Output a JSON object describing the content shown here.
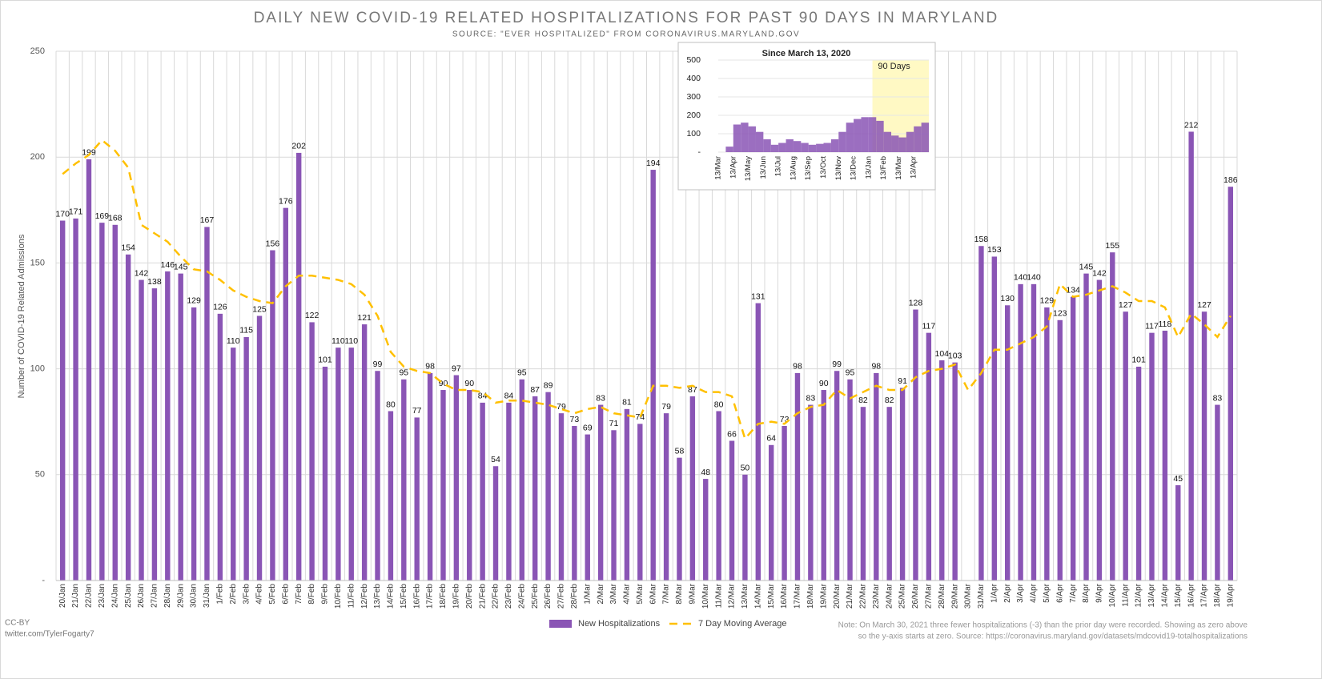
{
  "chart_data": [
    {
      "type": "bar",
      "title": "DAILY NEW COVID-19 RELATED HOSPITALIZATIONS FOR PAST 90 DAYS IN MARYLAND",
      "subtitle": "SOURCE: \"EVER HOSPITALIZED\" FROM CORONAVIRUS.MARYLAND.GOV",
      "y_label": "Number of COVID-19 Related Admissions",
      "categories": [
        "20/Jan",
        "21/Jan",
        "22/Jan",
        "23/Jan",
        "24/Jan",
        "25/Jan",
        "26/Jan",
        "27/Jan",
        "28/Jan",
        "29/Jan",
        "30/Jan",
        "31/Jan",
        "1/Feb",
        "2/Feb",
        "3/Feb",
        "4/Feb",
        "5/Feb",
        "6/Feb",
        "7/Feb",
        "8/Feb",
        "9/Feb",
        "10/Feb",
        "11/Feb",
        "12/Feb",
        "13/Feb",
        "14/Feb",
        "15/Feb",
        "16/Feb",
        "17/Feb",
        "18/Feb",
        "19/Feb",
        "20/Feb",
        "21/Feb",
        "22/Feb",
        "23/Feb",
        "24/Feb",
        "25/Feb",
        "26/Feb",
        "27/Feb",
        "28/Feb",
        "1/Mar",
        "2/Mar",
        "3/Mar",
        "4/Mar",
        "5/Mar",
        "6/Mar",
        "7/Mar",
        "8/Mar",
        "9/Mar",
        "10/Mar",
        "11/Mar",
        "12/Mar",
        "13/Mar",
        "14/Mar",
        "15/Mar",
        "16/Mar",
        "17/Mar",
        "18/Mar",
        "19/Mar",
        "20/Mar",
        "21/Mar",
        "22/Mar",
        "23/Mar",
        "24/Mar",
        "25/Mar",
        "26/Mar",
        "27/Mar",
        "28/Mar",
        "29/Mar",
        "30/Mar",
        "31/Mar",
        "1/Apr",
        "2/Apr",
        "3/Apr",
        "4/Apr",
        "5/Apr",
        "6/Apr",
        "7/Apr",
        "8/Apr",
        "9/Apr",
        "10/Apr",
        "11/Apr",
        "12/Apr",
        "13/Apr",
        "14/Apr",
        "15/Apr",
        "16/Apr",
        "17/Apr",
        "18/Apr",
        "19/Apr"
      ],
      "series": [
        {
          "name": "New Hospitalizations",
          "type": "bar",
          "color": "#8a55b5",
          "values": [
            170,
            171,
            199,
            169,
            168,
            154,
            142,
            138,
            146,
            145,
            129,
            167,
            126,
            110,
            115,
            125,
            156,
            176,
            202,
            122,
            101,
            110,
            110,
            121,
            99,
            80,
            95,
            77,
            98,
            90,
            97,
            90,
            84,
            54,
            84,
            95,
            87,
            89,
            79,
            73,
            69,
            83,
            71,
            81,
            74,
            194,
            79,
            58,
            87,
            48,
            80,
            66,
            50,
            131,
            64,
            73,
            98,
            83,
            90,
            99,
            95,
            82,
            98,
            82,
            91,
            128,
            117,
            104,
            103,
            0,
            158,
            153,
            130,
            140,
            140,
            129,
            123,
            134,
            145,
            142,
            155,
            127,
            101,
            117,
            118,
            45,
            212,
            127,
            83,
            186
          ]
        },
        {
          "name": "7 Day Moving Average",
          "type": "line",
          "color": "#ffc000",
          "values": [
            192,
            197,
            201,
            208,
            203,
            195,
            168,
            164,
            160,
            153,
            147,
            146,
            142,
            137,
            134,
            132,
            131,
            139,
            144,
            144,
            143,
            142,
            140,
            135,
            125,
            108,
            101,
            99,
            98,
            93,
            90,
            90,
            89,
            84,
            85,
            85,
            84,
            83,
            81,
            79,
            81,
            82,
            79,
            78,
            77,
            92,
            92,
            91,
            92,
            89,
            89,
            87,
            67,
            74,
            75,
            74,
            79,
            82,
            83,
            90,
            86,
            89,
            92,
            90,
            90,
            96,
            99,
            100,
            102,
            90,
            98,
            109,
            109,
            112,
            115,
            120,
            140,
            134,
            135,
            137,
            139,
            136,
            132,
            132,
            129,
            115,
            126,
            121,
            115,
            125
          ]
        }
      ],
      "ylim": [
        0,
        250
      ],
      "yticks": [
        {
          "value": 0,
          "label": "-"
        },
        50,
        100,
        150,
        200,
        250
      ],
      "grid": true,
      "legend": "bottom"
    },
    {
      "type": "bar",
      "title": "Since March 13, 2020",
      "annotation": "90 Days",
      "categories": [
        "13/Mar",
        null,
        "13/Apr",
        null,
        "13/May",
        null,
        "13/Jun",
        null,
        "13/Jul",
        null,
        "13/Aug",
        null,
        "13/Sep",
        null,
        "13/Oct",
        null,
        "13/Nov",
        null,
        "13/Dec",
        null,
        "13/Jan",
        null,
        "13/Feb",
        null,
        "13/Mar",
        null,
        "13/Apr",
        null
      ],
      "values": [
        0,
        30,
        150,
        160,
        140,
        110,
        70,
        40,
        50,
        70,
        60,
        50,
        40,
        45,
        50,
        70,
        110,
        160,
        180,
        190,
        190,
        170,
        110,
        90,
        80,
        110,
        140,
        160
      ],
      "color": "#8a55b5",
      "ylim": [
        0,
        500
      ],
      "yticks": [
        {
          "value": 0,
          "label": "-"
        },
        100,
        200,
        300,
        400,
        500
      ]
    }
  ],
  "credits": [
    "CC-BY",
    "twitter.com/TylerFogarty7"
  ],
  "note": [
    "Note: On March 30, 2021 three fewer hospitalizations (-3) than the prior day were recorded. Showing as zero above",
    "so the y-axis starts at zero. Source: https://coronavirus.maryland.gov/datasets/mdcovid19-totalhospitalizations"
  ]
}
